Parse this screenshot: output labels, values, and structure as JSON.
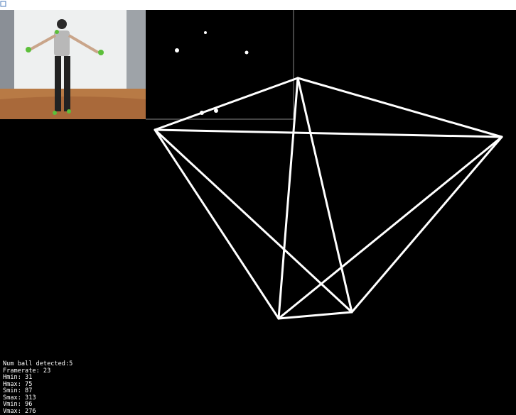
{
  "status_lines": [
    "Num ball detected:5",
    "Framerate: 23",
    "Hmin: 31",
    "Hmax: 75",
    "Smin: 87",
    "Smax: 313",
    "Vmin: 96",
    "Vmax: 276"
  ]
}
